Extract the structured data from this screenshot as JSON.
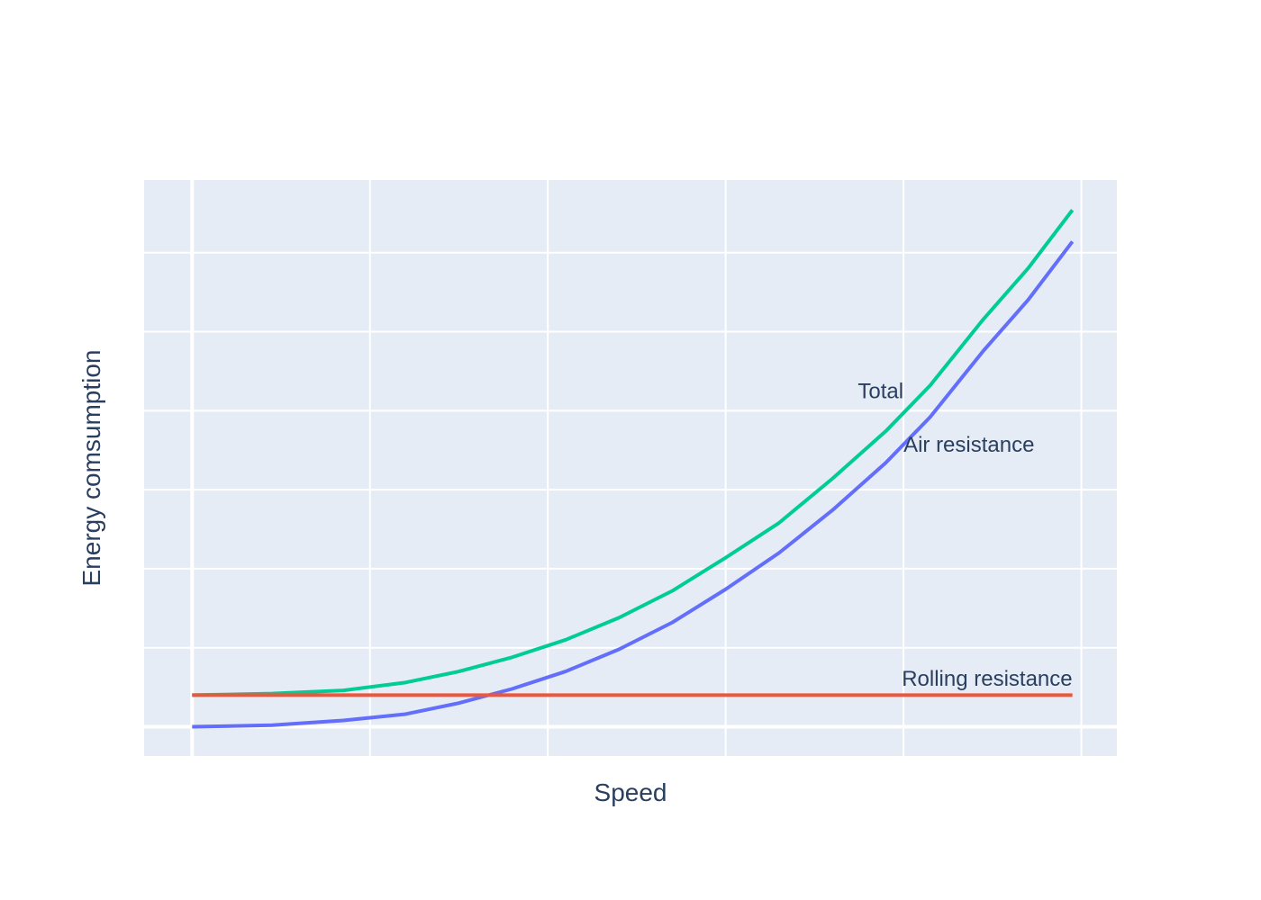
{
  "chart_data": {
    "type": "line",
    "title": "",
    "xlabel": "Speed",
    "ylabel": "Energy comsumption",
    "xlim": [
      -0.27,
      5.2
    ],
    "ylim": [
      -0.185,
      3.46
    ],
    "grid": true,
    "plot_bg": "#e5ecf6",
    "x_gridlines": [
      0,
      1,
      2,
      3,
      4,
      5
    ],
    "y_gridlines": [
      0,
      0.5,
      1,
      1.5,
      2,
      2.5,
      3
    ],
    "series": [
      {
        "color": "#636efa",
        "x": [
          0,
          0.45,
          0.85,
          1.2,
          1.5,
          1.8,
          2.1,
          2.4,
          2.7,
          3.0,
          3.3,
          3.6,
          3.9,
          4.15,
          4.45,
          4.7,
          4.95
        ],
        "y": [
          0.0,
          0.01,
          0.04,
          0.08,
          0.15,
          0.24,
          0.35,
          0.49,
          0.66,
          0.87,
          1.1,
          1.37,
          1.67,
          1.96,
          2.38,
          2.7,
          3.07
        ]
      },
      {
        "color": "#00cc96",
        "x": [
          0,
          0.45,
          0.85,
          1.2,
          1.5,
          1.8,
          2.1,
          2.4,
          2.7,
          3.0,
          3.3,
          3.6,
          3.9,
          4.15,
          4.45,
          4.7,
          4.95
        ],
        "y": [
          0.2,
          0.21,
          0.23,
          0.28,
          0.35,
          0.44,
          0.55,
          0.69,
          0.86,
          1.07,
          1.29,
          1.57,
          1.87,
          2.16,
          2.58,
          2.9,
          3.27
        ]
      },
      {
        "color": "#ef553b",
        "x": [
          0,
          4.95
        ],
        "y": [
          0.2,
          0.2
        ]
      }
    ],
    "annotations": [
      {
        "text": "Total",
        "x": 4.0,
        "y": 2.08,
        "anchor": "end"
      },
      {
        "text": "Air resistance",
        "x": 4.0,
        "y": 1.74,
        "anchor": "start"
      },
      {
        "text": "Rolling resistance",
        "x": 4.95,
        "y": 0.26,
        "anchor": "end"
      }
    ]
  }
}
